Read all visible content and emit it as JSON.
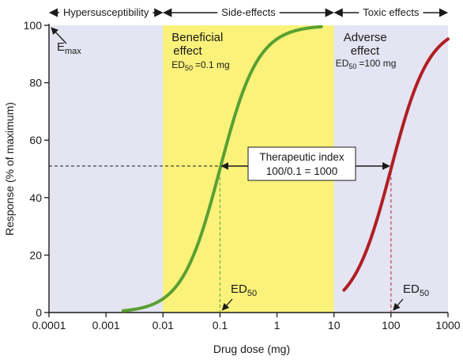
{
  "chart_data": {
    "type": "line",
    "xlabel": "Drug dose (mg)",
    "ylabel": "Response (% of maximum)",
    "xscale": "log",
    "xlim": [
      0.0001,
      1000
    ],
    "ylim": [
      0,
      100
    ],
    "x_tick_labels": [
      "0.0001",
      "0.001",
      "0.01",
      "0.1",
      "1",
      "10",
      "100",
      "1000"
    ],
    "y_tick_labels": [
      "0",
      "20",
      "40",
      "60",
      "80",
      "100"
    ],
    "grid": false,
    "regions": [
      {
        "name": "hypersusceptibility",
        "label": "Hypersusceptibility",
        "x_range": [
          0.0001,
          0.01
        ],
        "color": "#e4e4f2"
      },
      {
        "name": "side-effects",
        "label": "Side-effects",
        "x_range": [
          0.01,
          10
        ],
        "color": "#faf27a"
      },
      {
        "name": "toxic-effects",
        "label": "Toxic effects",
        "x_range": [
          10,
          1000
        ],
        "color": "#e4e4f2"
      }
    ],
    "series": [
      {
        "key": "beneficial",
        "label_lines": [
          "Beneficial",
          "effect"
        ],
        "ed50_text": "ED",
        "ed50_sub": "50",
        "ed50_value": "=0.1 mg",
        "ed50": 0.1,
        "x_range": [
          0.002,
          6
        ],
        "color": "#5aa032"
      },
      {
        "key": "adverse",
        "label_lines": [
          "Adverse",
          "effect"
        ],
        "ed50_text": "ED",
        "ed50_sub": "50",
        "ed50_value": "=100 mg",
        "ed50": 100,
        "x_range": [
          15,
          1000
        ],
        "color": "#b01e23"
      }
    ],
    "hill_slope": 1.3,
    "emax": {
      "text": "E",
      "sub": "max",
      "value": 100
    },
    "therapeutic_index": {
      "title": "Therapeutic index",
      "formula": "100/0.1 = 1000",
      "y": 51
    },
    "ed50_markers": [
      {
        "text": "ED",
        "sub": "50",
        "x": 0.1
      },
      {
        "text": "ED",
        "sub": "50",
        "x": 100
      }
    ],
    "colors": {
      "axis": "#1a1a1a",
      "arrow": "#1a1a1a",
      "dash": "#1a1a1a"
    }
  }
}
